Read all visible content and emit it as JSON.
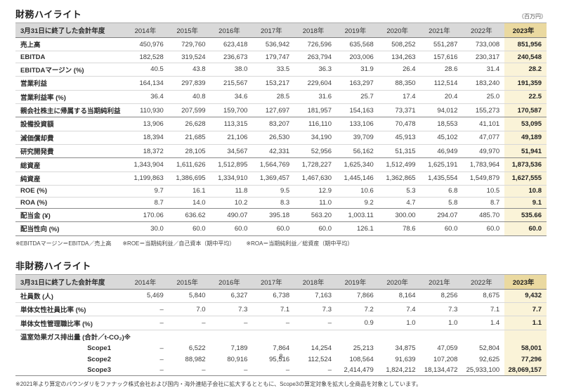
{
  "page_number": "8",
  "colors": {
    "header_bg": "#d9d9d9",
    "highlight_header_bg": "#ead9a0",
    "highlight_cell_bg": "#faf3d8"
  },
  "financial": {
    "title": "財務ハイライト",
    "unit": "（百万円）",
    "fiscal_year_header": "3月31日に終了した会計年度",
    "years": [
      "2014年",
      "2015年",
      "2016年",
      "2017年",
      "2018年",
      "2019年",
      "2020年",
      "2021年",
      "2022年",
      "2023年"
    ],
    "rows": [
      {
        "label": "売上高",
        "values": [
          "450,976",
          "729,760",
          "623,418",
          "536,942",
          "726,596",
          "635,568",
          "508,252",
          "551,287",
          "733,008",
          "851,956"
        ]
      },
      {
        "label": "EBITDA",
        "values": [
          "182,528",
          "319,524",
          "236,673",
          "179,747",
          "263,794",
          "203,006",
          "134,263",
          "157,616",
          "230,317",
          "240,548"
        ]
      },
      {
        "label": "EBITDAマージン (%)",
        "values": [
          "40.5",
          "43.8",
          "38.0",
          "33.5",
          "36.3",
          "31.9",
          "26.4",
          "28.6",
          "31.4",
          "28.2"
        ]
      },
      {
        "label": "営業利益",
        "values": [
          "164,134",
          "297,839",
          "215,567",
          "153,217",
          "229,604",
          "163,297",
          "88,350",
          "112,514",
          "183,240",
          "191,359"
        ]
      },
      {
        "label": "営業利益率 (%)",
        "values": [
          "36.4",
          "40.8",
          "34.6",
          "28.5",
          "31.6",
          "25.7",
          "17.4",
          "20.4",
          "25.0",
          "22.5"
        ]
      },
      {
        "label": "親会社株主に帰属する当期純利益",
        "values": [
          "110,930",
          "207,599",
          "159,700",
          "127,697",
          "181,957",
          "154,163",
          "73,371",
          "94,012",
          "155,273",
          "170,587"
        ],
        "section_end": true
      },
      {
        "label": "設備投資額",
        "values": [
          "13,906",
          "26,628",
          "113,315",
          "83,207",
          "116,110",
          "133,106",
          "70,478",
          "18,553",
          "41,101",
          "53,095"
        ]
      },
      {
        "label": "減価償却費",
        "values": [
          "18,394",
          "21,685",
          "21,106",
          "26,530",
          "34,190",
          "39,709",
          "45,913",
          "45,102",
          "47,077",
          "49,189"
        ]
      },
      {
        "label": "研究開発費",
        "values": [
          "18,372",
          "28,105",
          "34,567",
          "42,331",
          "52,956",
          "56,162",
          "51,315",
          "46,949",
          "49,970",
          "51,941"
        ],
        "section_end": true
      },
      {
        "label": "総資産",
        "values": [
          "1,343,904",
          "1,611,626",
          "1,512,895",
          "1,564,769",
          "1,728,227",
          "1,625,340",
          "1,512,499",
          "1,625,191",
          "1,783,964",
          "1,873,536"
        ]
      },
      {
        "label": "純資産",
        "values": [
          "1,199,863",
          "1,386,695",
          "1,334,910",
          "1,369,457",
          "1,467,630",
          "1,445,146",
          "1,362,865",
          "1,435,554",
          "1,549,879",
          "1,627,555"
        ]
      },
      {
        "label": "ROE (%)",
        "values": [
          "9.7",
          "16.1",
          "11.8",
          "9.5",
          "12.9",
          "10.6",
          "5.3",
          "6.8",
          "10.5",
          "10.8"
        ]
      },
      {
        "label": "ROA (%)",
        "values": [
          "8.7",
          "14.0",
          "10.2",
          "8.3",
          "11.0",
          "9.2",
          "4.7",
          "5.8",
          "8.7",
          "9.1"
        ],
        "section_end": true
      },
      {
        "label": "配当金 (¥)",
        "values": [
          "170.06",
          "636.62",
          "490.07",
          "395.18",
          "563.20",
          "1,003.11",
          "300.00",
          "294.07",
          "485.70",
          "535.66"
        ],
        "section_end": true
      },
      {
        "label": "配当性向 (%)",
        "values": [
          "30.0",
          "60.0",
          "60.0",
          "60.0",
          "60.0",
          "126.1",
          "78.6",
          "60.0",
          "60.0",
          "60.0"
        ],
        "section_end": true
      }
    ],
    "footnotes": [
      "※EBITDAマージン＝EBITDA／売上高",
      "※ROE＝当期純利益／自己資本（期中平均）",
      "※ROA＝当期純利益／総資産（期中平均）"
    ]
  },
  "nonfinancial": {
    "title": "非財務ハイライト",
    "fiscal_year_header": "3月31日に終了した会計年度",
    "years": [
      "2014年",
      "2015年",
      "2016年",
      "2017年",
      "2018年",
      "2019年",
      "2020年",
      "2021年",
      "2022年",
      "2023年"
    ],
    "rows": [
      {
        "label": "社員数 (人)",
        "values": [
          "5,469",
          "5,840",
          "6,327",
          "6,738",
          "7,163",
          "7,866",
          "8,164",
          "8,256",
          "8,675",
          "9,432"
        ]
      },
      {
        "label": "単体女性社員比率 (%)",
        "values": [
          "–",
          "7.0",
          "7.3",
          "7.1",
          "7.3",
          "7.2",
          "7.4",
          "7.3",
          "7.1",
          "7.7"
        ]
      },
      {
        "label": "単体女性管理職比率 (%)",
        "values": [
          "–",
          "–",
          "–",
          "–",
          "–",
          "0.9",
          "1.0",
          "1.0",
          "1.4",
          "1.1"
        ]
      },
      {
        "label": "温室効果ガス排出量 (合計／t-CO₂)※",
        "values": [
          "",
          "",
          "",
          "",
          "",
          "",
          "",
          "",
          "",
          ""
        ],
        "group_header": true,
        "no_line": true
      },
      {
        "label": "Scope1",
        "indent": true,
        "values": [
          "–",
          "6,522",
          "7,189",
          "7,864",
          "14,254",
          "25,213",
          "34,875",
          "47,059",
          "52,804",
          "58,001"
        ],
        "no_line": true
      },
      {
        "label": "Scope2",
        "indent": true,
        "values": [
          "–",
          "88,982",
          "80,916",
          "95,516",
          "112,524",
          "108,564",
          "91,639",
          "107,208",
          "92,625",
          "77,296"
        ],
        "no_line": true
      },
      {
        "label": "Scope3",
        "indent": true,
        "values": [
          "–",
          "–",
          "–",
          "–",
          "–",
          "2,414,479",
          "1,824,212",
          "18,134,472",
          "25,933,100",
          "28,069,157"
        ],
        "section_end": true
      }
    ],
    "footnote": "※2021年より算定のバウンダリをファナック株式会社および国内・海外連結子会社に拡大するとともに、Scope3の算定対象を拡大し全商品を対象としています。"
  }
}
